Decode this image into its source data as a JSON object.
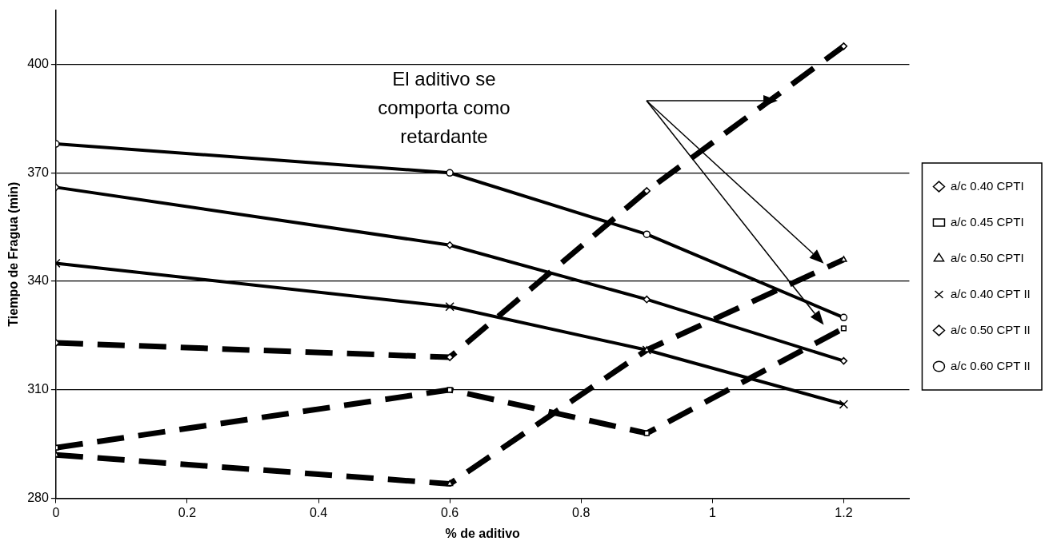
{
  "chart_data": {
    "type": "line",
    "xlabel": "% de aditivo",
    "ylabel": "Tiempo de Fragua (min)",
    "x": [
      0,
      0.6,
      0.9,
      1.2
    ],
    "series": [
      {
        "name": "a/c 0.40 CPTI",
        "color": "#000000",
        "line_style": "dashed",
        "marker": "diamond",
        "values": [
          323,
          319,
          365,
          405
        ]
      },
      {
        "name": "a/c 0.45 CPTI",
        "color": "#000000",
        "line_style": "dashed",
        "marker": "square",
        "values": [
          294,
          310,
          298,
          327
        ]
      },
      {
        "name": "a/c 0.50 CPTI",
        "color": "#000000",
        "line_style": "dashed",
        "marker": "triangle",
        "values": [
          292,
          284,
          321,
          346
        ]
      },
      {
        "name": "a/c 0.40 CPT II",
        "color": "#000000",
        "line_style": "solid",
        "marker": "cross",
        "values": [
          345,
          333,
          321,
          306
        ]
      },
      {
        "name": "a/c 0.50 CPT II",
        "color": "#000000",
        "line_style": "solid",
        "marker": "diamond",
        "values": [
          366,
          350,
          335,
          318
        ]
      },
      {
        "name": "a/c 0.60 CPT II",
        "color": "#000000",
        "line_style": "solid",
        "marker": "circle",
        "values": [
          378,
          370,
          353,
          330
        ]
      }
    ],
    "xlim": [
      0,
      1.3
    ],
    "xticks": [
      0,
      0.2,
      0.4,
      0.6,
      0.8,
      1,
      1.2
    ],
    "ylim": [
      280,
      415
    ],
    "yticks": [
      280,
      310,
      340,
      370,
      400
    ],
    "grid": "y",
    "legend": "right",
    "annotations": [
      "El aditivo se comporta como retardante"
    ]
  }
}
